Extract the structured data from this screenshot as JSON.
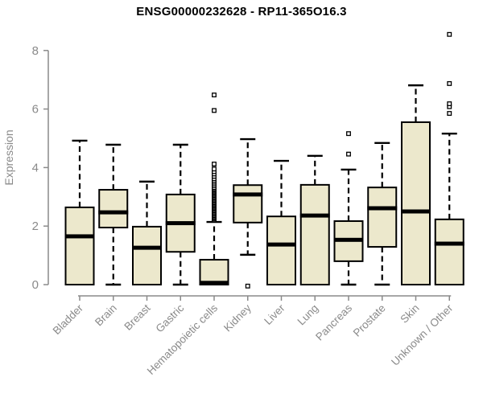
{
  "chart_data": {
    "type": "boxplot",
    "title": "ENSG00000232628 - RP11-365O16.3",
    "ylabel": "Expression",
    "xlabel": "",
    "ylim": [
      0,
      8
    ],
    "yticks": [
      0,
      2,
      4,
      6,
      8
    ],
    "grid": false,
    "legend": "none",
    "categories": [
      "Bladder",
      "Brain",
      "Breast",
      "Gastric",
      "Hematopoietic cells",
      "Kidney",
      "Liver",
      "Lung",
      "Pancreas",
      "Prostate",
      "Skin",
      "Unknown / Other"
    ],
    "series": [
      {
        "name": "Bladder",
        "min": 0,
        "q1": 0,
        "median": 1.65,
        "q3": 2.64,
        "max": 4.92,
        "outliers": []
      },
      {
        "name": "Brain",
        "min": 0,
        "q1": 1.95,
        "median": 2.47,
        "q3": 3.24,
        "max": 4.78,
        "outliers": []
      },
      {
        "name": "Breast",
        "min": 0,
        "q1": 0,
        "median": 1.26,
        "q3": 1.98,
        "max": 3.52,
        "outliers": []
      },
      {
        "name": "Gastric",
        "min": 0,
        "q1": 1.12,
        "median": 2.1,
        "q3": 3.08,
        "max": 4.78,
        "outliers": []
      },
      {
        "name": "Hematopoietic cells",
        "min": 0,
        "q1": 0,
        "median": 0.06,
        "q3": 0.85,
        "max": 2.14,
        "outliers": [
          2.2,
          2.24,
          2.28,
          2.32,
          2.36,
          2.4,
          2.44,
          2.48,
          2.52,
          2.56,
          2.6,
          2.64,
          2.68,
          2.72,
          2.76,
          2.8,
          2.84,
          2.88,
          2.92,
          2.96,
          3.0,
          3.04,
          3.08,
          3.12,
          3.16,
          3.2,
          3.24,
          3.28,
          3.32,
          3.38,
          3.44,
          3.5,
          3.56,
          3.62,
          3.7,
          3.78,
          3.86,
          3.95,
          4.12,
          5.95,
          6.48
        ]
      },
      {
        "name": "Kidney",
        "min": 1.02,
        "q1": 2.12,
        "median": 3.08,
        "q3": 3.4,
        "max": 4.97,
        "outliers": [
          -0.05
        ]
      },
      {
        "name": "Liver",
        "min": 0,
        "q1": 0,
        "median": 1.37,
        "q3": 2.33,
        "max": 4.23,
        "outliers": []
      },
      {
        "name": "Lung",
        "min": 0,
        "q1": 0,
        "median": 2.36,
        "q3": 3.41,
        "max": 4.4,
        "outliers": []
      },
      {
        "name": "Pancreas",
        "min": 0,
        "q1": 0.8,
        "median": 1.53,
        "q3": 2.17,
        "max": 3.93,
        "outliers": [
          4.46,
          5.16
        ]
      },
      {
        "name": "Prostate",
        "min": 0,
        "q1": 1.29,
        "median": 2.61,
        "q3": 3.32,
        "max": 4.84,
        "outliers": []
      },
      {
        "name": "Skin",
        "min": 0,
        "q1": 0,
        "median": 2.5,
        "q3": 5.55,
        "max": 6.81,
        "outliers": []
      },
      {
        "name": "Unknown / Other",
        "min": 0,
        "q1": 0,
        "median": 1.4,
        "q3": 2.23,
        "max": 5.16,
        "outliers": [
          5.85,
          6.08,
          6.18,
          6.87,
          8.55
        ]
      }
    ],
    "colors": {
      "box_fill": "#ECE8CC",
      "box_stroke": "#000000",
      "median": "#000000",
      "whisker": "#000000",
      "outlier_stroke": "#000000",
      "outlier_fill": "#ffffff",
      "axis": "#8a8a8a",
      "tick_label": "#8a8a8a",
      "title": "#000000",
      "background": "#ffffff"
    }
  }
}
